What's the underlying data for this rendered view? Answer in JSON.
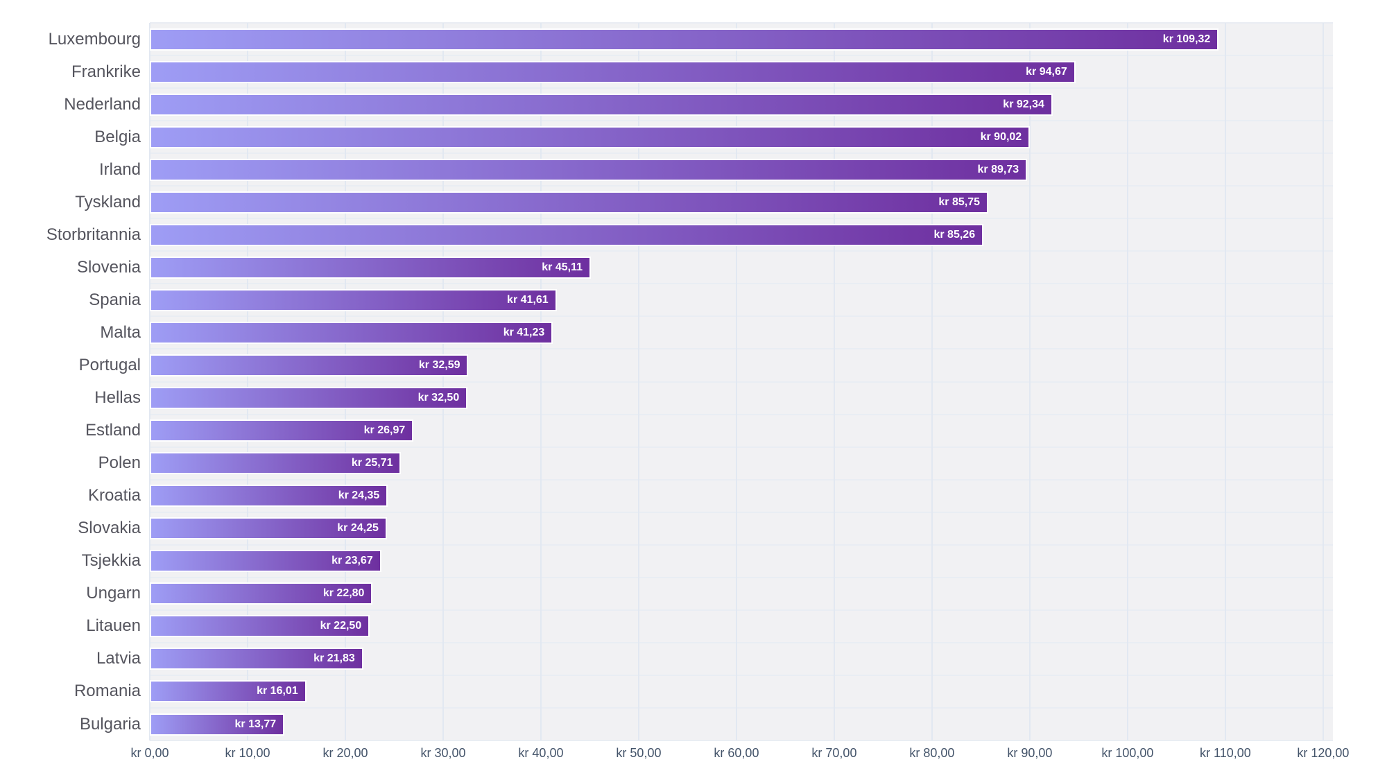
{
  "chart_data": {
    "type": "bar",
    "orientation": "horizontal",
    "title": "",
    "value_prefix": "kr",
    "categories": [
      "Luxembourg",
      "Frankrike",
      "Nederland",
      "Belgia",
      "Irland",
      "Tyskland",
      "Storbritannia",
      "Slovenia",
      "Spania",
      "Malta",
      "Portugal",
      "Hellas",
      "Estland",
      "Polen",
      "Kroatia",
      "Slovakia",
      "Tsjekkia",
      "Ungarn",
      "Litauen",
      "Latvia",
      "Romania",
      "Bulgaria"
    ],
    "values": [
      109.32,
      94.67,
      92.34,
      90.02,
      89.73,
      85.75,
      85.26,
      45.11,
      41.61,
      41.23,
      32.59,
      32.5,
      26.97,
      25.71,
      24.35,
      24.25,
      23.67,
      22.8,
      22.5,
      21.83,
      16.01,
      13.77
    ],
    "bar_labels": [
      "kr 109,32",
      "kr 94,67",
      "kr 92,34",
      "kr 90,02",
      "kr 89,73",
      "kr 85,75",
      "kr 85,26",
      "kr 45,11",
      "kr 41,61",
      "kr 41,23",
      "kr 32,59",
      "kr 32,50",
      "kr 26,97",
      "kr 25,71",
      "kr 24,35",
      "kr 24,25",
      "kr 23,67",
      "kr 22,80",
      "kr 22,50",
      "kr 21,83",
      "kr 16,01",
      "kr 13,77"
    ],
    "x_ticks": [
      0,
      10,
      20,
      30,
      40,
      50,
      60,
      70,
      80,
      90,
      100,
      110,
      120
    ],
    "x_tick_labels": [
      "kr 0,00",
      "kr 10,00",
      "kr 20,00",
      "kr 30,00",
      "kr 40,00",
      "kr 50,00",
      "kr 60,00",
      "kr 70,00",
      "kr 80,00",
      "kr 90,00",
      "kr 100,00",
      "kr 110,00",
      "kr 120,00"
    ],
    "xlim": [
      0,
      121
    ],
    "grid": true,
    "legend": null,
    "colors": {
      "bar_gradient_start": "#9e9df5",
      "bar_gradient_end": "#6e2f9f",
      "plot_background": "#f1f1f3",
      "v_gridline": "#e2e8f1",
      "h_gridline": "#e9edf3",
      "category_label": "#55555e",
      "axis_label": "#44546a",
      "value_label": "#ffffff",
      "page_background": "#ffffff"
    }
  }
}
